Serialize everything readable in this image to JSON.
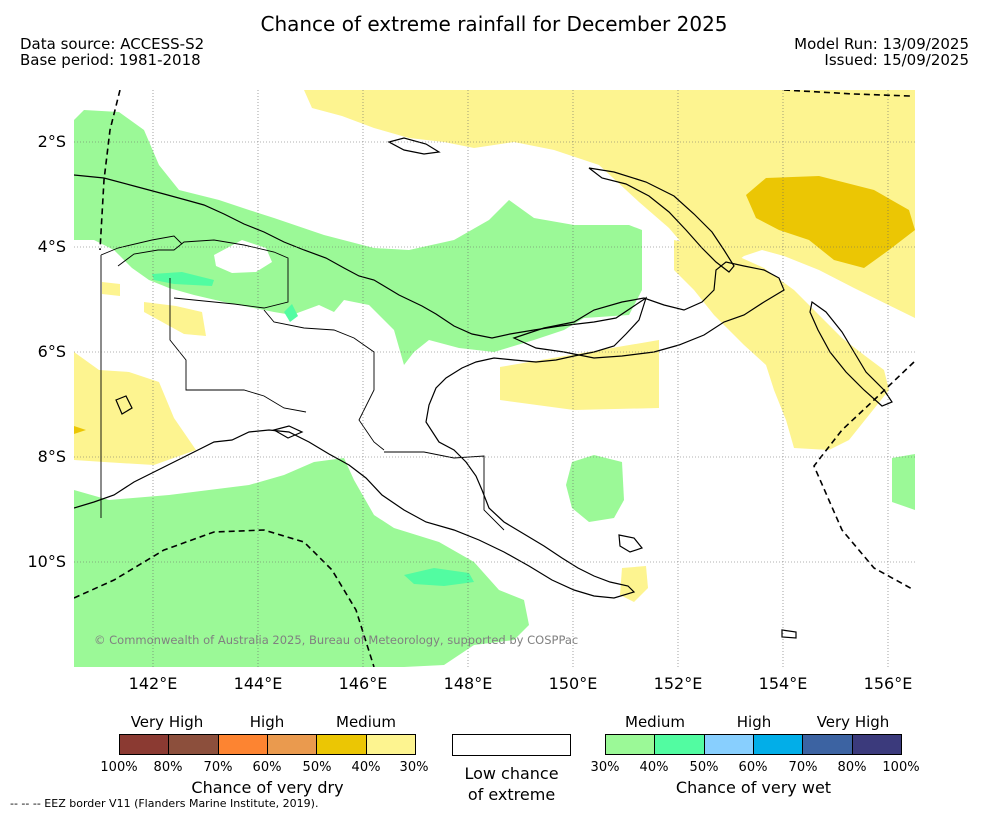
{
  "title": "Chance of extreme rainfall for December 2025",
  "meta": {
    "data_source": "Data source: ACCESS-S2",
    "base_period": "Base period: 1981-2018",
    "model_run": "Model Run: 13/09/2025",
    "issued": "Issued: 15/09/2025"
  },
  "map": {
    "copyright": "© Commonwealth of Australia 2025, Bureau of Meteorology, supported by COSPPac",
    "y_ticks": [
      "2°S",
      "4°S",
      "6°S",
      "8°S",
      "10°S"
    ],
    "x_ticks": [
      "142°E",
      "144°E",
      "146°E",
      "148°E",
      "150°E",
      "152°E",
      "154°E",
      "156°E"
    ],
    "gridlines": true
  },
  "legend": {
    "dry": {
      "headers": [
        "Very High",
        "High",
        "Medium"
      ],
      "colors": [
        "#8b3a32",
        "#8c4f3c",
        "#fd8431",
        "#ea9a4e",
        "#ebc604",
        "#fdf490"
      ],
      "ticks": [
        "100%",
        "80%",
        "70%",
        "60%",
        "50%",
        "40%",
        "30%"
      ],
      "caption": "Chance of very dry"
    },
    "low": {
      "caption_line1": "Low chance",
      "caption_line2": "of extreme",
      "color": "#ffffff"
    },
    "wet": {
      "headers": [
        "Medium",
        "High",
        "Very High"
      ],
      "colors": [
        "#9bf997",
        "#52fca1",
        "#88cffe",
        "#02aee8",
        "#3c63a2",
        "#3b3a7c"
      ],
      "ticks": [
        "30%",
        "40%",
        "50%",
        "60%",
        "70%",
        "80%",
        "100%"
      ],
      "caption": "Chance of very wet"
    }
  },
  "footer": "--  --  -- EEZ border V11 (Flanders Marine Institute, 2019)."
}
